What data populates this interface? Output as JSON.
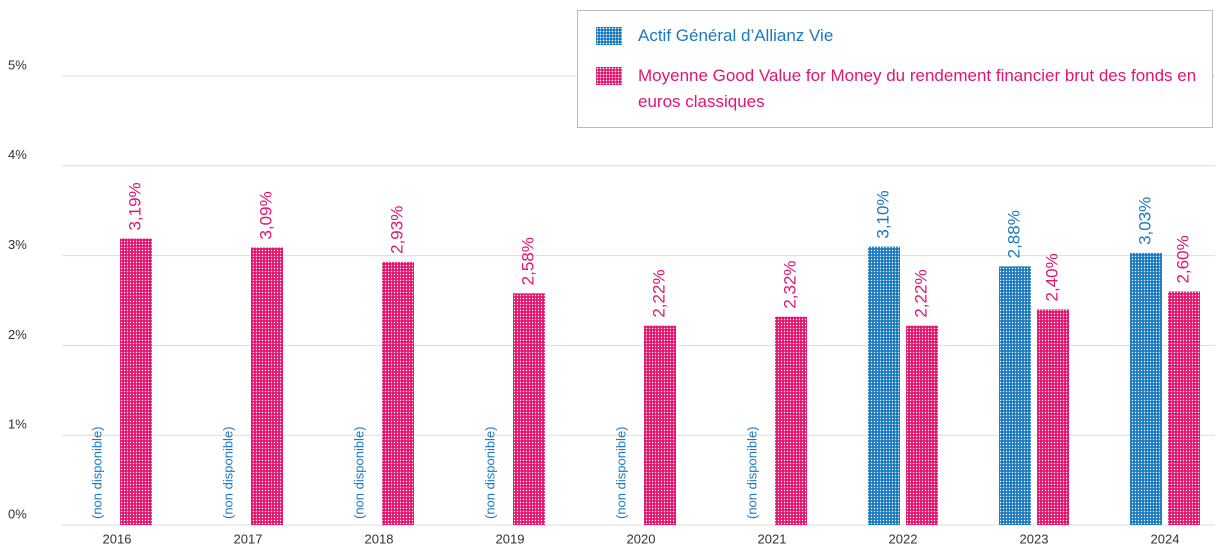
{
  "chart_data": {
    "type": "bar",
    "categories": [
      "2016",
      "2017",
      "2018",
      "2019",
      "2020",
      "2021",
      "2022",
      "2023",
      "2024"
    ],
    "series": [
      {
        "name": "Actif Général d’Allianz Vie",
        "color": "#1a7ac0",
        "values": [
          null,
          null,
          null,
          null,
          null,
          null,
          3.1,
          2.88,
          3.03
        ],
        "value_labels": [
          "(non disponible)",
          "(non disponible)",
          "(non disponible)",
          "(non disponible)",
          "(non disponible)",
          "(non disponible)",
          "3,10%",
          "2,88%",
          "3,03%"
        ]
      },
      {
        "name": "Moyenne Good Value for Money du rendement financier brut des fonds en euros classiques",
        "color": "#e2156f",
        "values": [
          3.19,
          3.09,
          2.93,
          2.58,
          2.22,
          2.32,
          2.22,
          2.4,
          2.6
        ],
        "value_labels": [
          "3,19%",
          "3,09%",
          "2,93%",
          "2,58%",
          "2,22%",
          "2,32%",
          "2,22%",
          "2,40%",
          "2,60%"
        ]
      }
    ],
    "ylim": [
      0,
      5
    ],
    "yticks": [
      {
        "value": 0,
        "label": "0%"
      },
      {
        "value": 1,
        "label": "1%"
      },
      {
        "value": 2,
        "label": "2%"
      },
      {
        "value": 3,
        "label": "3%"
      },
      {
        "value": 4,
        "label": "4%"
      },
      {
        "value": 5,
        "label": "5%"
      }
    ],
    "grid": true,
    "legend": "top-right"
  }
}
